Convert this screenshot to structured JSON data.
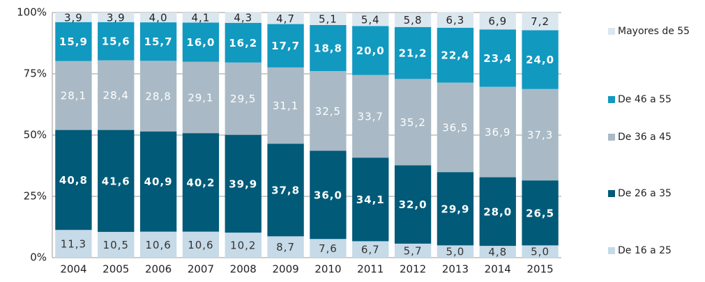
{
  "chart_data": {
    "type": "stacked_bar",
    "categories": [
      "2004",
      "2005",
      "2006",
      "2007",
      "2008",
      "2009",
      "2010",
      "2011",
      "2012",
      "2013",
      "2014",
      "2015"
    ],
    "ylim": [
      0,
      100
    ],
    "yticks": [
      {
        "value": 0,
        "label": "0%"
      },
      {
        "value": 25,
        "label": "25%"
      },
      {
        "value": 50,
        "label": "50%"
      },
      {
        "value": 75,
        "label": "75%"
      },
      {
        "value": 100,
        "label": "100%"
      }
    ],
    "grid": true,
    "legend": "right",
    "series": [
      {
        "name": "De 16 a 25",
        "color": "#c6dae8",
        "values": [
          11.3,
          10.5,
          10.6,
          10.6,
          10.2,
          8.7,
          7.6,
          6.7,
          5.7,
          5,
          4.8,
          5
        ],
        "value_labels": [
          "11,3",
          "10,5",
          "10,6",
          "10,6",
          "10,2",
          "8,7",
          "7,6",
          "6,7",
          "5,7",
          "5,0",
          "4,8",
          "5,0"
        ]
      },
      {
        "name": "De 26 a 35",
        "color": "#005a78",
        "values": [
          40.8,
          41.6,
          40.9,
          40.2,
          39.9,
          37.8,
          36,
          34.1,
          32,
          29.9,
          28,
          26.5
        ],
        "value_labels": [
          "40,8",
          "41,6",
          "40,9",
          "40,2",
          "39,9",
          "37,8",
          "36,0",
          "34,1",
          "32,0",
          "29,9",
          "28,0",
          "26,5"
        ]
      },
      {
        "name": "De 36 a 45",
        "color": "#a9bac6",
        "values": [
          28.1,
          28.4,
          28.8,
          29.1,
          29.5,
          31.1,
          32.5,
          33.7,
          35.2,
          36.5,
          36.9,
          37.3
        ],
        "value_labels": [
          "28,1",
          "28,4",
          "28,8",
          "29,1",
          "29,5",
          "31,1",
          "32,5",
          "33,7",
          "35,2",
          "36,5",
          "36,9",
          "37,3"
        ]
      },
      {
        "name": "De 46 a 55",
        "color": "#1199c0",
        "values": [
          15.9,
          15.6,
          15.7,
          16,
          16.2,
          17.7,
          18.8,
          20,
          21.2,
          22.4,
          23.4,
          24
        ],
        "value_labels": [
          "15,9",
          "15,6",
          "15,7",
          "16,0",
          "16,2",
          "17,7",
          "18,8",
          "20,0",
          "21,2",
          "22,4",
          "23,4",
          "24,0"
        ]
      },
      {
        "name": "Mayores de 55",
        "color": "#dbe7ef",
        "values": [
          3.9,
          3.9,
          4,
          4.1,
          4.3,
          4.7,
          5.1,
          5.4,
          5.8,
          6.3,
          6.9,
          7.2
        ],
        "value_labels": [
          "3,9",
          "3,9",
          "4,0",
          "4,1",
          "4,3",
          "4,7",
          "5,1",
          "5,4",
          "5,8",
          "6,3",
          "6,9",
          "7,2"
        ]
      }
    ]
  }
}
